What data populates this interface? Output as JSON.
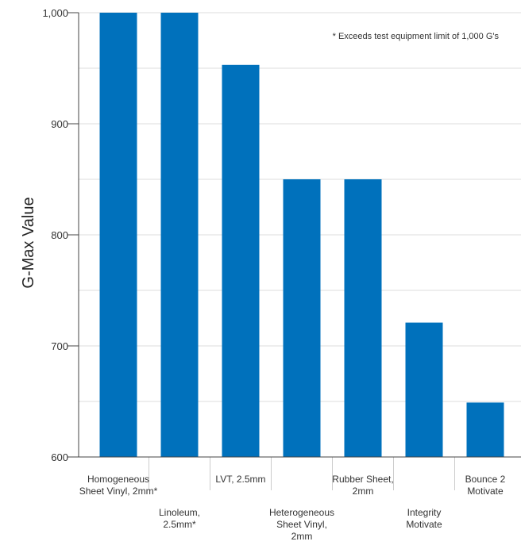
{
  "chart_data": {
    "type": "bar",
    "title": "",
    "xlabel": "",
    "ylabel": "G-Max Value",
    "ylim": [
      600,
      1000
    ],
    "yticks": [
      600,
      700,
      800,
      900,
      1000
    ],
    "ytick_labels": [
      "600",
      "700",
      "800",
      "900",
      "1,000"
    ],
    "grid": true,
    "annotation": "* Exceeds test equipment limit of 1,000 G's",
    "color": "#0071BC",
    "categories": [
      [
        "Homogeneous",
        "Sheet Vinyl, 2mm*"
      ],
      [
        "Linoleum,",
        "2.5mm*"
      ],
      [
        "LVT, 2.5mm"
      ],
      [
        "Heterogeneous",
        "Sheet Vinyl,",
        "2mm"
      ],
      [
        "Rubber Sheet,",
        "2mm"
      ],
      [
        "Integrity",
        "Motivate"
      ],
      [
        "Bounce 2",
        "Motivate"
      ]
    ],
    "values": [
      1000,
      1000,
      953,
      850,
      850,
      721,
      649
    ]
  }
}
